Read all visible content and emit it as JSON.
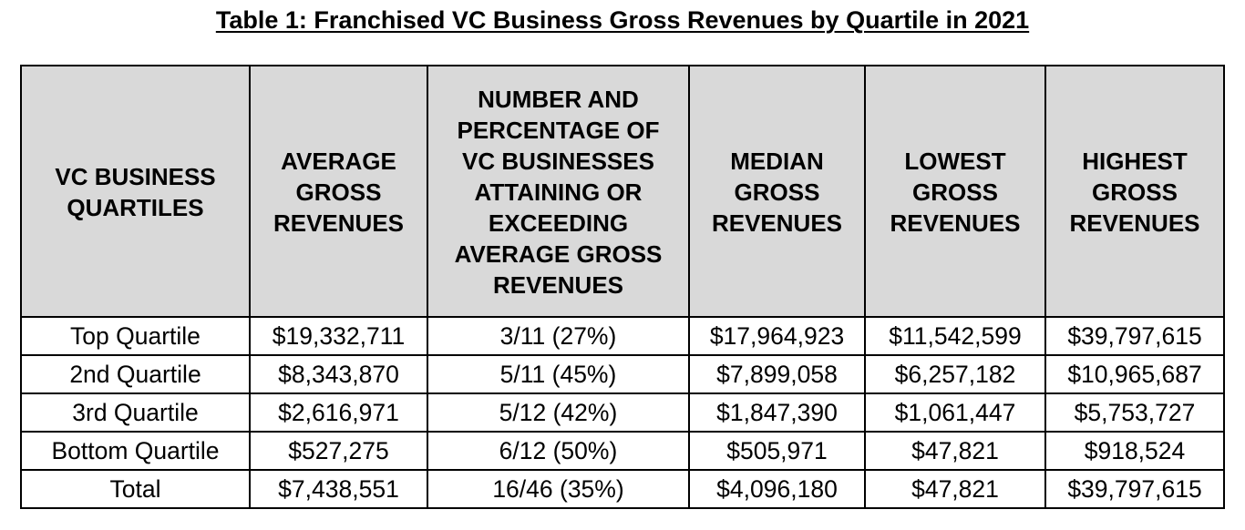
{
  "document": {
    "title": "Table 1:  Franchised VC Business Gross Revenues by Quartile in 2021"
  },
  "table": {
    "headers": [
      "VC BUSINESS QUARTILES",
      "AVERAGE GROSS REVENUES",
      "NUMBER AND PERCENTAGE OF VC BUSINESSES ATTAINING OR EXCEEDING AVERAGE GROSS REVENUES",
      "MEDIAN GROSS REVENUES",
      "LOWEST GROSS REVENUES",
      "HIGHEST GROSS REVENUES"
    ],
    "rows": [
      [
        "Top Quartile",
        "$19,332,711",
        "3/11 (27%)",
        "$17,964,923",
        "$11,542,599",
        "$39,797,615"
      ],
      [
        "2nd Quartile",
        "$8,343,870",
        "5/11 (45%)",
        "$7,899,058",
        "$6,257,182",
        "$10,965,687"
      ],
      [
        "3rd Quartile",
        "$2,616,971",
        "5/12 (42%)",
        "$1,847,390",
        "$1,061,447",
        "$5,753,727"
      ],
      [
        "Bottom Quartile",
        "$527,275",
        "6/12 (50%)",
        "$505,971",
        "$47,821",
        "$918,524"
      ],
      [
        "Total",
        "$7,438,551",
        "16/46 (35%)",
        "$4,096,180",
        "$47,821",
        "$39,797,615"
      ]
    ]
  },
  "colors": {
    "header_background": "#d9d9d9",
    "border": "#000000",
    "text": "#000000"
  }
}
